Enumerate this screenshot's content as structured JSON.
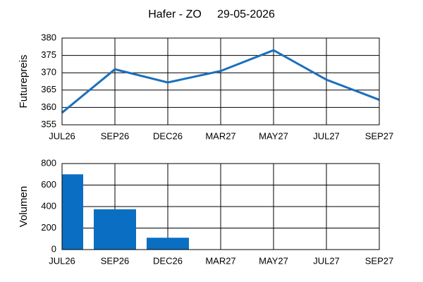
{
  "header": {
    "title": "Hafer - ZO",
    "date": "29-05-2026"
  },
  "chart_data": [
    {
      "type": "line",
      "y_label": "Futurepreis",
      "categories": [
        "JUL26",
        "SEP26",
        "DEC26",
        "MAR27",
        "MAY27",
        "JUL27",
        "SEP27"
      ],
      "values": [
        358.5,
        371,
        367.2,
        370.5,
        376.5,
        368,
        362.2
      ],
      "color": "#1a6fbd",
      "ylim": [
        355,
        380
      ],
      "yticks": [
        355,
        360,
        365,
        370,
        375,
        380
      ],
      "grid": true
    },
    {
      "type": "bar",
      "y_label": "Volumen",
      "categories": [
        "JUL26",
        "SEP26",
        "DEC26",
        "MAR27",
        "MAY27",
        "JUL27",
        "SEP27"
      ],
      "values": [
        700,
        375,
        110,
        0,
        0,
        0,
        0
      ],
      "color": "#0a6fc2",
      "ylim": [
        0,
        800
      ],
      "yticks": [
        0,
        200,
        400,
        600,
        800
      ],
      "grid": true
    }
  ]
}
